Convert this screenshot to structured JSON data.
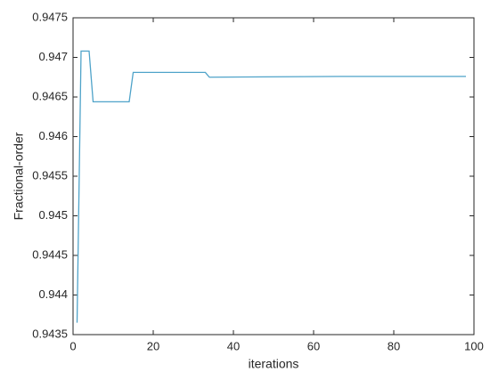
{
  "chart_data": {
    "type": "line",
    "x_label": "iterations",
    "y_label": "Fractional-order",
    "x": [
      1,
      2,
      4,
      5,
      14,
      15,
      33,
      34,
      67,
      98
    ],
    "series": [
      {
        "color": "#4fa3c9",
        "values": [
          0.94365,
          0.94708,
          0.94708,
          0.94644,
          0.94644,
          0.94681,
          0.94681,
          0.94675,
          0.94676,
          0.94676
        ]
      }
    ],
    "xlim": [
      0,
      100
    ],
    "xticks": [
      0,
      20,
      40,
      60,
      80,
      100
    ],
    "ylim": [
      0.9435,
      0.9475
    ],
    "yticks": [
      0.9435,
      0.944,
      0.9445,
      0.945,
      0.9455,
      0.946,
      0.9465,
      0.947,
      0.9475
    ],
    "grid": false
  }
}
